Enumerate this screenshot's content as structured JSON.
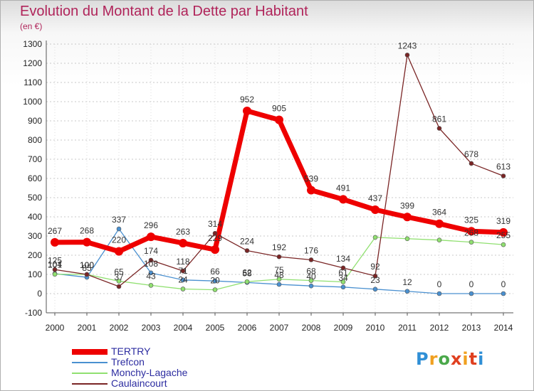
{
  "header": {
    "title": "Evolution du Montant de la Dette par Habitant",
    "subtitle": "(en €)"
  },
  "logo": {
    "text": "Proxiti",
    "colors": [
      "#2f8fd6",
      "#f0a020",
      "#4aa84a",
      "#e04020"
    ]
  },
  "chart_data": {
    "type": "line",
    "title": "Evolution du Montant de la Dette par Habitant",
    "subtitle": "(en €)",
    "xlabel": "",
    "ylabel": "",
    "x": [
      "2000",
      "2001",
      "2002",
      "2003",
      "2004",
      "2005",
      "2006",
      "2007",
      "2008",
      "2009",
      "2010",
      "2011",
      "2012",
      "2013",
      "2014"
    ],
    "ylim": [
      -100,
      1300
    ],
    "yticks": [
      -100,
      0,
      100,
      200,
      300,
      400,
      500,
      600,
      700,
      800,
      900,
      1000,
      1100,
      1200,
      1300
    ],
    "legend_position": "bottom-left",
    "series": [
      {
        "name": "TERTRY",
        "color": "#ee0000",
        "values": [
          267,
          268,
          220,
          296,
          263,
          229,
          952,
          905,
          539,
          491,
          437,
          399,
          364,
          325,
          319
        ]
      },
      {
        "name": "Trefcon",
        "color": "#4a90d0",
        "values": [
          104,
          85,
          337,
          108,
          71,
          66,
          58,
          48,
          40,
          34,
          23,
          12,
          0,
          0,
          0
        ]
      },
      {
        "name": "Monchy-Lagache",
        "color": "#90e070",
        "values": [
          101,
          100,
          65,
          43,
          24,
          20,
          62,
          75,
          68,
          61,
          293,
          286,
          279,
          268,
          255
        ]
      },
      {
        "name": "Caulaincourt",
        "color": "#7a2525",
        "values": [
          125,
          100,
          37,
          174,
          118,
          314,
          224,
          192,
          176,
          134,
          92,
          1243,
          861,
          678,
          613
        ]
      }
    ],
    "data_labels": [
      [
        "267",
        "268",
        "220",
        "296",
        "263",
        "229",
        "952",
        "905",
        "539",
        "491",
        "437",
        "399",
        "364",
        "325",
        "319"
      ],
      [
        "104",
        "85",
        "337",
        "108",
        "71",
        "66",
        "58",
        "48",
        "40",
        "34",
        "23",
        "12",
        "0",
        "0",
        "0"
      ],
      [
        "101",
        "100",
        "65",
        "43",
        "24",
        "20",
        "62",
        "75",
        "68",
        "61",
        "",
        "",
        "",
        "268",
        "255"
      ],
      [
        "125",
        "100",
        "37",
        "174",
        "118",
        "314",
        "224",
        "192",
        "176",
        "134",
        "92",
        "1243",
        "861",
        "678",
        "613"
      ]
    ]
  }
}
